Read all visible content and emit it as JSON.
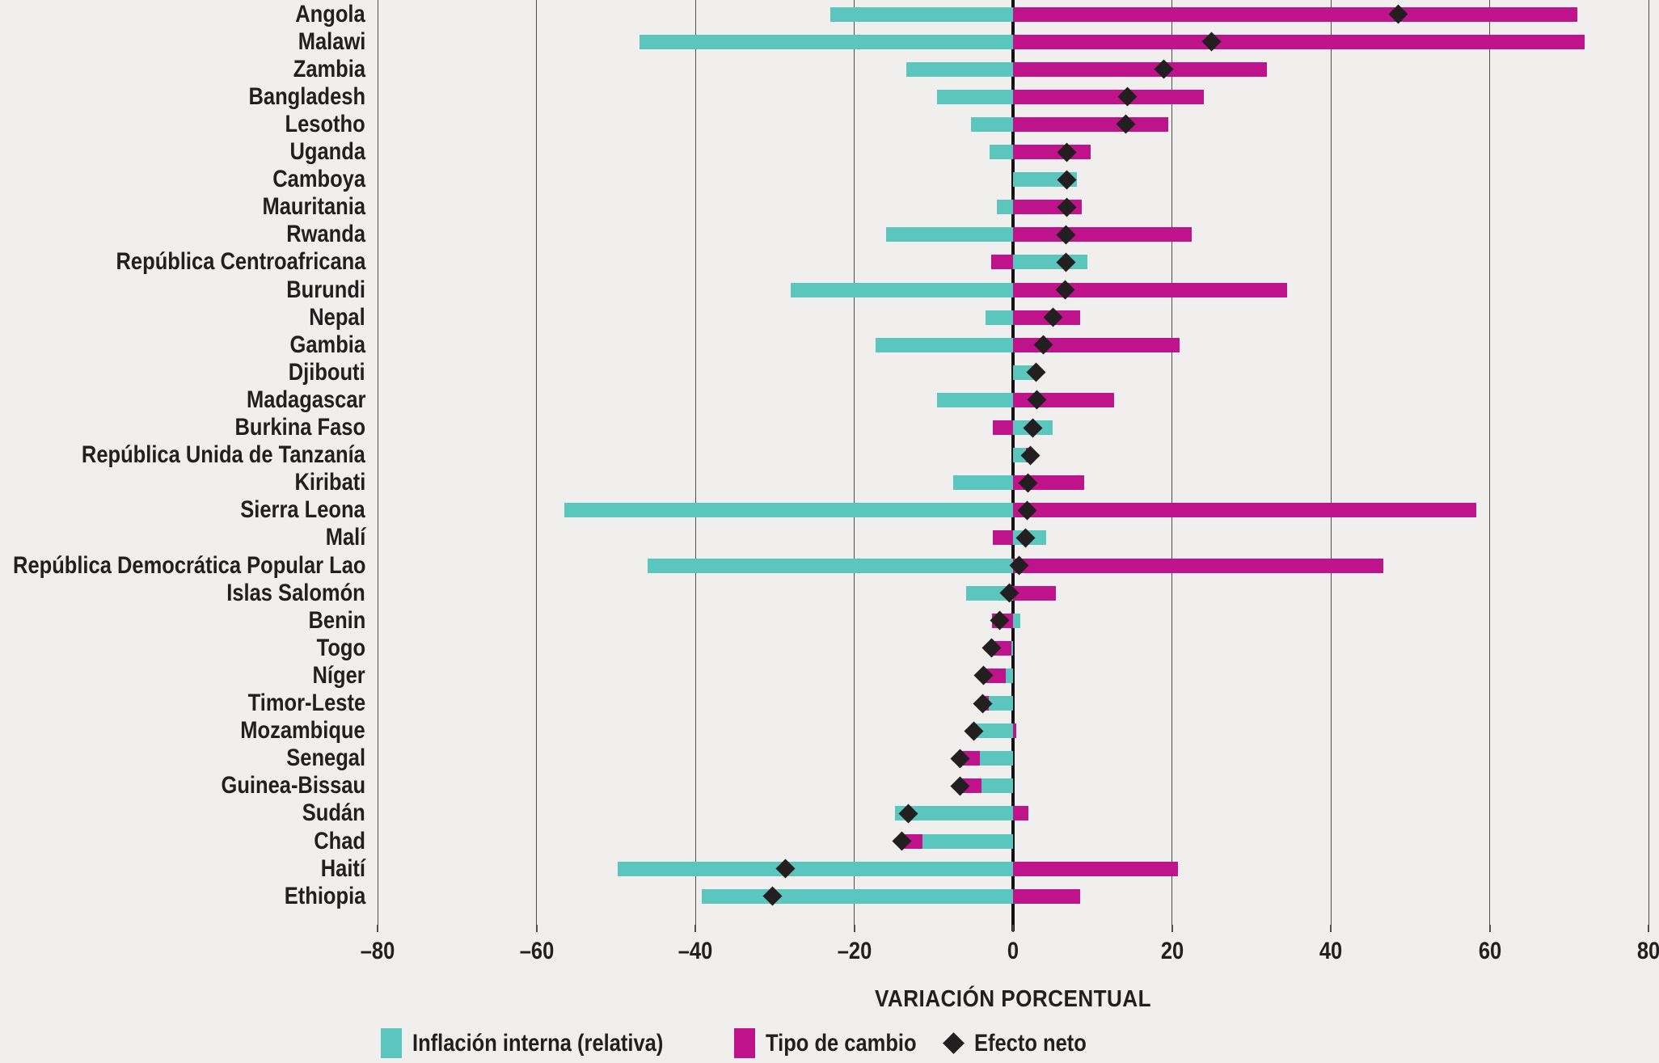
{
  "chart_data": {
    "type": "bar",
    "orientation": "horizontal",
    "stacking": "signed-stacked",
    "xlabel": "VARIACIÓN PORCENTUAL",
    "xlim": [
      -80,
      80
    ],
    "x_ticks": [
      -80,
      -60,
      -40,
      -20,
      0,
      20,
      40,
      60,
      80
    ],
    "x_tick_labels": [
      "–80",
      "–60",
      "–40",
      "–20",
      "0",
      "20",
      "40",
      "60",
      "80"
    ],
    "grid": "vertical",
    "legend_position": "bottom",
    "series_names": [
      "Inflación interna (relativa)",
      "Tipo de cambio",
      "Efecto neto"
    ],
    "colors": {
      "inflacion": "#5bc6bd",
      "tipo_cambio": "#bf138c",
      "efecto_neto": "#231f20",
      "background": "#f0efed",
      "gridline": "#4f4f4f",
      "zero_line": "#121212"
    },
    "countries": [
      {
        "name": "Angola",
        "inflacion": -23.0,
        "tipo_cambio": 71.0,
        "efecto_neto": 48.5
      },
      {
        "name": "Malawi",
        "inflacion": -47.0,
        "tipo_cambio": 72.0,
        "efecto_neto": 25.0
      },
      {
        "name": "Zambia",
        "inflacion": -13.4,
        "tipo_cambio": 32.0,
        "efecto_neto": 19.0
      },
      {
        "name": "Bangladesh",
        "inflacion": -9.6,
        "tipo_cambio": 24.0,
        "efecto_neto": 14.4
      },
      {
        "name": "Lesotho",
        "inflacion": -5.3,
        "tipo_cambio": 19.5,
        "efecto_neto": 14.2
      },
      {
        "name": "Uganda",
        "inflacion": -3.0,
        "tipo_cambio": 9.8,
        "efecto_neto": 6.8
      },
      {
        "name": "Camboya",
        "inflacion": 8.0,
        "tipo_cambio": 0.0,
        "efecto_neto": 6.8
      },
      {
        "name": "Mauritania",
        "inflacion": -2.0,
        "tipo_cambio": 8.7,
        "efecto_neto": 6.8
      },
      {
        "name": "Rwanda",
        "inflacion": -16.0,
        "tipo_cambio": 22.5,
        "efecto_neto": 6.7
      },
      {
        "name": "República Centroafricana",
        "inflacion": 9.4,
        "tipo_cambio": -2.7,
        "efecto_neto": 6.7
      },
      {
        "name": "Burundi",
        "inflacion": -28.0,
        "tipo_cambio": 34.5,
        "efecto_neto": 6.6
      },
      {
        "name": "Nepal",
        "inflacion": -3.5,
        "tipo_cambio": 8.4,
        "efecto_neto": 5.0
      },
      {
        "name": "Gambia",
        "inflacion": -17.3,
        "tipo_cambio": 21.0,
        "efecto_neto": 3.8
      },
      {
        "name": "Djibouti",
        "inflacion": 2.8,
        "tipo_cambio": 0.0,
        "efecto_neto": 2.9
      },
      {
        "name": "Madagascar",
        "inflacion": -9.6,
        "tipo_cambio": 12.7,
        "efecto_neto": 3.0
      },
      {
        "name": "Burkina Faso",
        "inflacion": 5.0,
        "tipo_cambio": -2.5,
        "efecto_neto": 2.5
      },
      {
        "name": "República Unida de Tanzanía",
        "inflacion": 1.6,
        "tipo_cambio": 0.6,
        "efecto_neto": 2.2
      },
      {
        "name": "Kiribati",
        "inflacion": -7.5,
        "tipo_cambio": 9.0,
        "efecto_neto": 1.9
      },
      {
        "name": "Sierra Leona",
        "inflacion": -56.5,
        "tipo_cambio": 58.3,
        "efecto_neto": 1.8
      },
      {
        "name": "Malí",
        "inflacion": 4.2,
        "tipo_cambio": -2.5,
        "efecto_neto": 1.6
      },
      {
        "name": "República Democrática Popular Lao",
        "inflacion": -46.0,
        "tipo_cambio": 46.6,
        "efecto_neto": 0.8
      },
      {
        "name": "Islas Salomón",
        "inflacion": -5.9,
        "tipo_cambio": 5.4,
        "efecto_neto": -0.5
      },
      {
        "name": "Benin",
        "inflacion": 0.9,
        "tipo_cambio": -2.6,
        "efecto_neto": -1.7
      },
      {
        "name": "Togo",
        "inflacion": -0.2,
        "tipo_cambio": -2.5,
        "efecto_neto": -2.7
      },
      {
        "name": "Níger",
        "inflacion": -0.9,
        "tipo_cambio": -2.8,
        "efecto_neto": -3.7
      },
      {
        "name": "Timor-Leste",
        "inflacion": -3.1,
        "tipo_cambio": -0.7,
        "efecto_neto": -3.8
      },
      {
        "name": "Mozambique",
        "inflacion": -5.3,
        "tipo_cambio": 0.4,
        "efecto_neto": -4.9
      },
      {
        "name": "Senegal",
        "inflacion": -4.2,
        "tipo_cambio": -2.5,
        "efecto_neto": -6.7
      },
      {
        "name": "Guinea-Bissau",
        "inflacion": -4.0,
        "tipo_cambio": -2.7,
        "efecto_neto": -6.7
      },
      {
        "name": "Sudán",
        "inflacion": -14.9,
        "tipo_cambio": 1.9,
        "efecto_neto": -13.2
      },
      {
        "name": "Chad",
        "inflacion": -11.4,
        "tipo_cambio": -2.6,
        "efecto_neto": -14.0
      },
      {
        "name": "Haití",
        "inflacion": -49.8,
        "tipo_cambio": 20.8,
        "efecto_neto": -28.7
      },
      {
        "name": "Ethiopia",
        "inflacion": -39.2,
        "tipo_cambio": 8.4,
        "efecto_neto": -30.3
      }
    ],
    "legend": [
      {
        "label": "Inflación interna (relativa)",
        "marker": "square",
        "color": "#5bc6bd"
      },
      {
        "label": "Tipo de cambio",
        "marker": "square",
        "color": "#bf138c"
      },
      {
        "label": "Efecto neto",
        "marker": "diamond",
        "color": "#231f20"
      }
    ]
  }
}
